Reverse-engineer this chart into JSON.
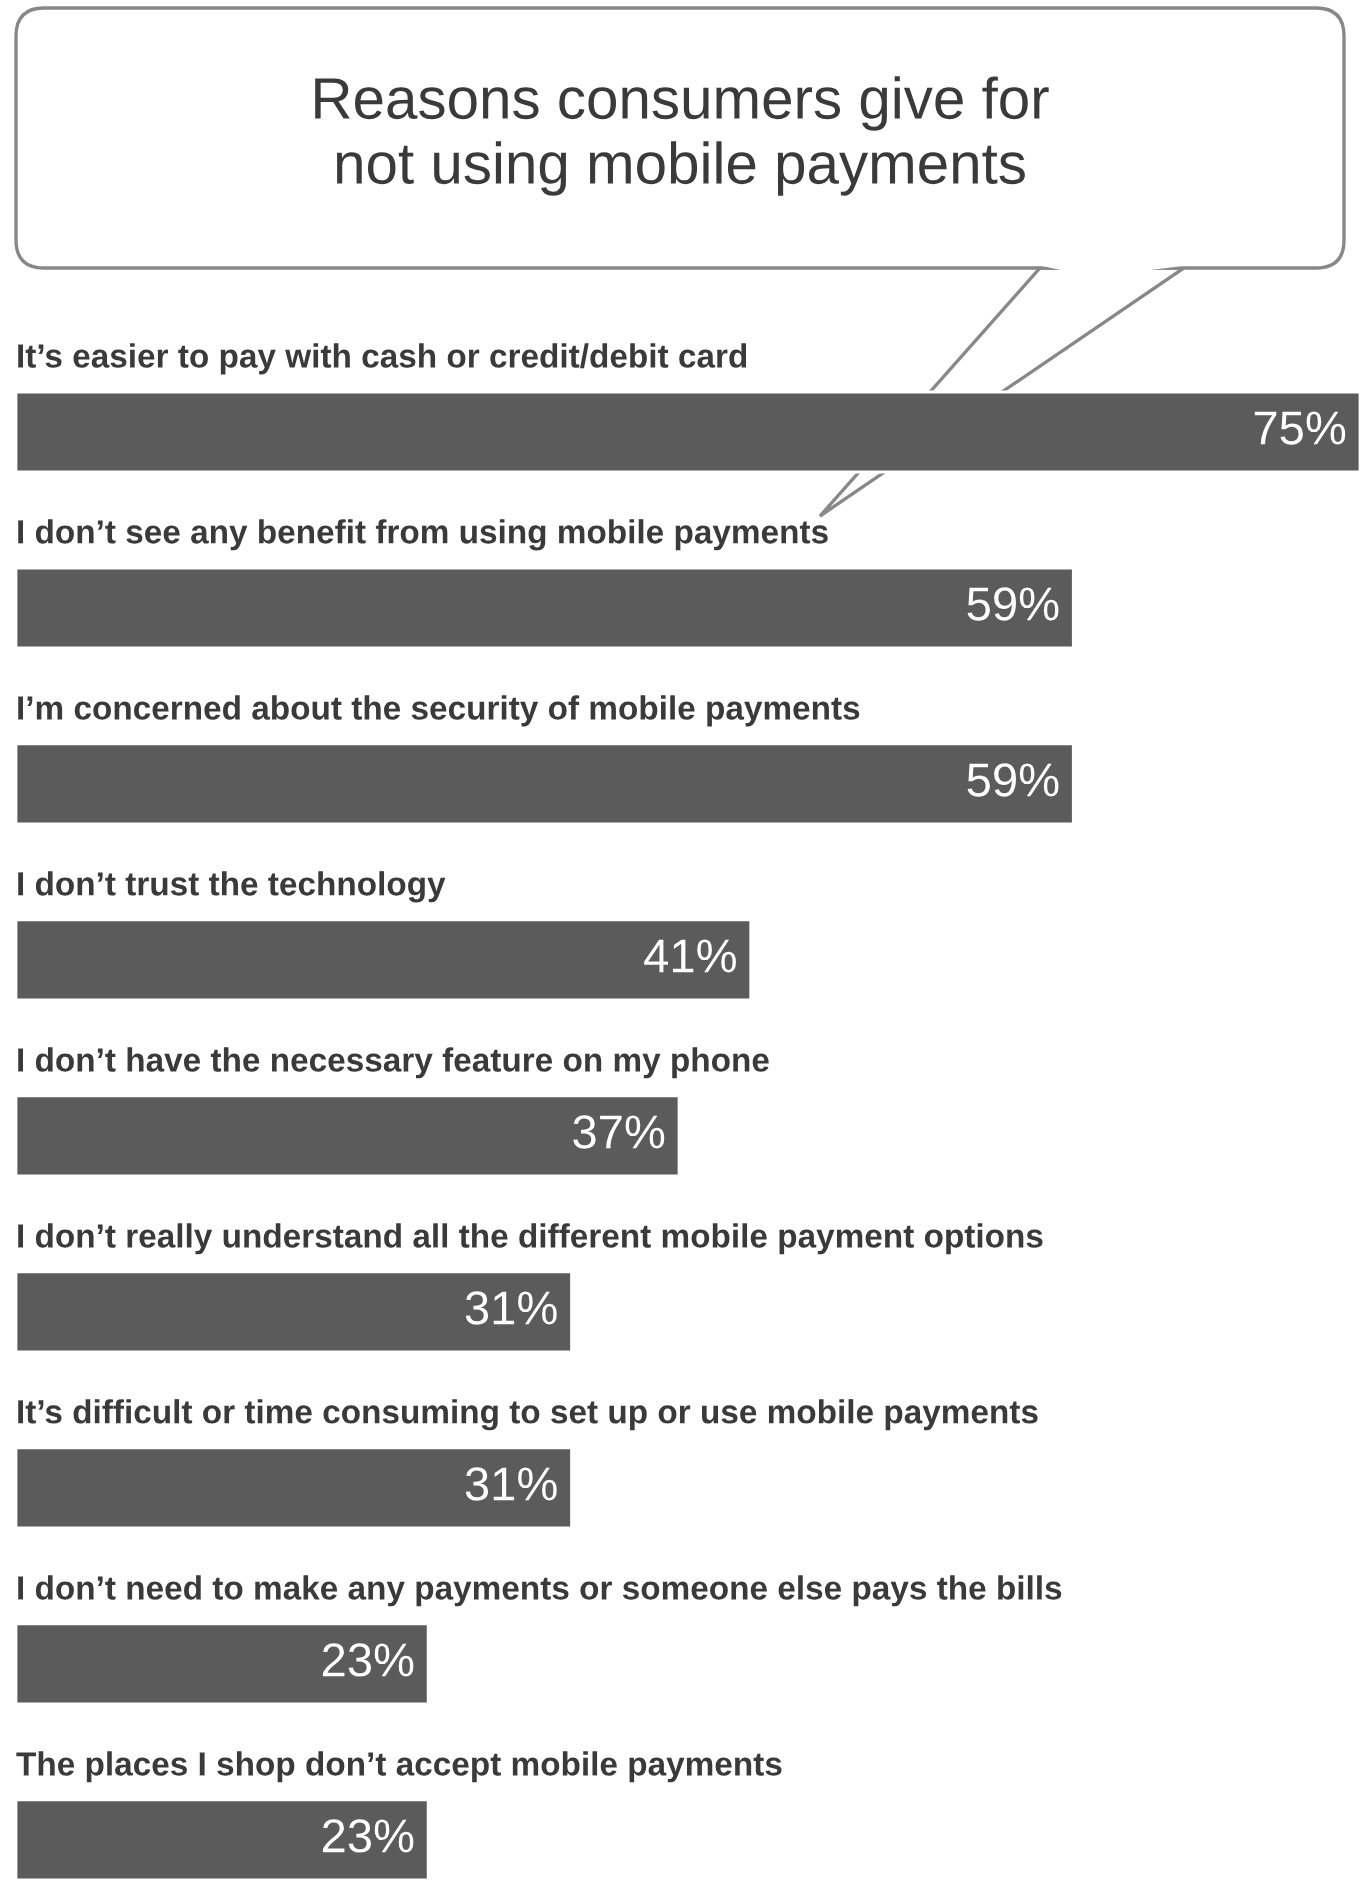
{
  "chart_data": {
    "type": "bar",
    "orientation": "horizontal",
    "title": "Reasons consumers give for\nnot using mobile payments",
    "categories": [
      "It’s easier to pay with cash or credit/debit card",
      "I don’t see any benefit from using mobile payments",
      "I’m concerned about the security of mobile payments",
      "I don’t trust the technology",
      "I don’t have the necessary feature on my phone",
      "I don’t really understand all the different mobile payment options",
      "It’s difficult or time consuming to set up or use mobile payments",
      "I don’t need to make any payments or someone else pays the bills",
      "The places I shop don’t accept mobile payments"
    ],
    "values": [
      75,
      59,
      59,
      41,
      37,
      31,
      31,
      23,
      23
    ],
    "value_labels": [
      "75%",
      "59%",
      "59%",
      "41%",
      "37%",
      "31%",
      "31%",
      "23%",
      "23%"
    ],
    "color": "#5b5b5b"
  }
}
